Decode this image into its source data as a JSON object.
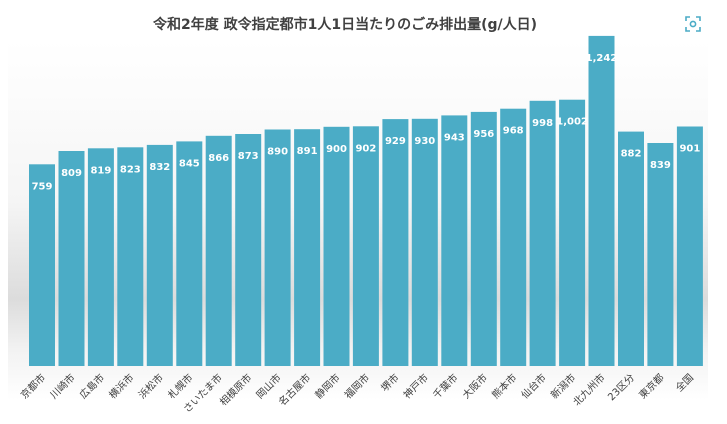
{
  "title": "令和2年度 政令指定都市1人1日当たりのごみ排出量(g/人日)",
  "scan_icon": "lens-scan-icon",
  "colors": {
    "bar": "#4bacc6",
    "label": "#ffffff",
    "tick": "#404040"
  },
  "chart_data": {
    "type": "bar",
    "title": "令和2年度 政令指定都市1人1日当たりのごみ排出量(g/人日)",
    "xlabel": "",
    "ylabel": "",
    "ylim": [
      0,
      1300
    ],
    "grid": false,
    "categories": [
      "京都市",
      "川崎市",
      "広島市",
      "横浜市",
      "浜松市",
      "札幌市",
      "さいたま市",
      "相模原市",
      "岡山市",
      "名古屋市",
      "静岡市",
      "福岡市",
      "堺市",
      "神戸市",
      "千葉市",
      "大阪市",
      "熊本市",
      "仙台市",
      "新潟市",
      "北九州市",
      "23区分",
      "東京都",
      "全国"
    ],
    "values": [
      759,
      809,
      819,
      823,
      832,
      845,
      866,
      873,
      890,
      891,
      900,
      902,
      929,
      930,
      943,
      956,
      968,
      998,
      1002,
      1242,
      882,
      839,
      901
    ],
    "value_labels": [
      "759",
      "809",
      "819",
      "823",
      "832",
      "845",
      "866",
      "873",
      "890",
      "891",
      "900",
      "902",
      "929",
      "930",
      "943",
      "956",
      "968",
      "998",
      "1,002",
      "1,242",
      "882",
      "839",
      "901"
    ]
  }
}
